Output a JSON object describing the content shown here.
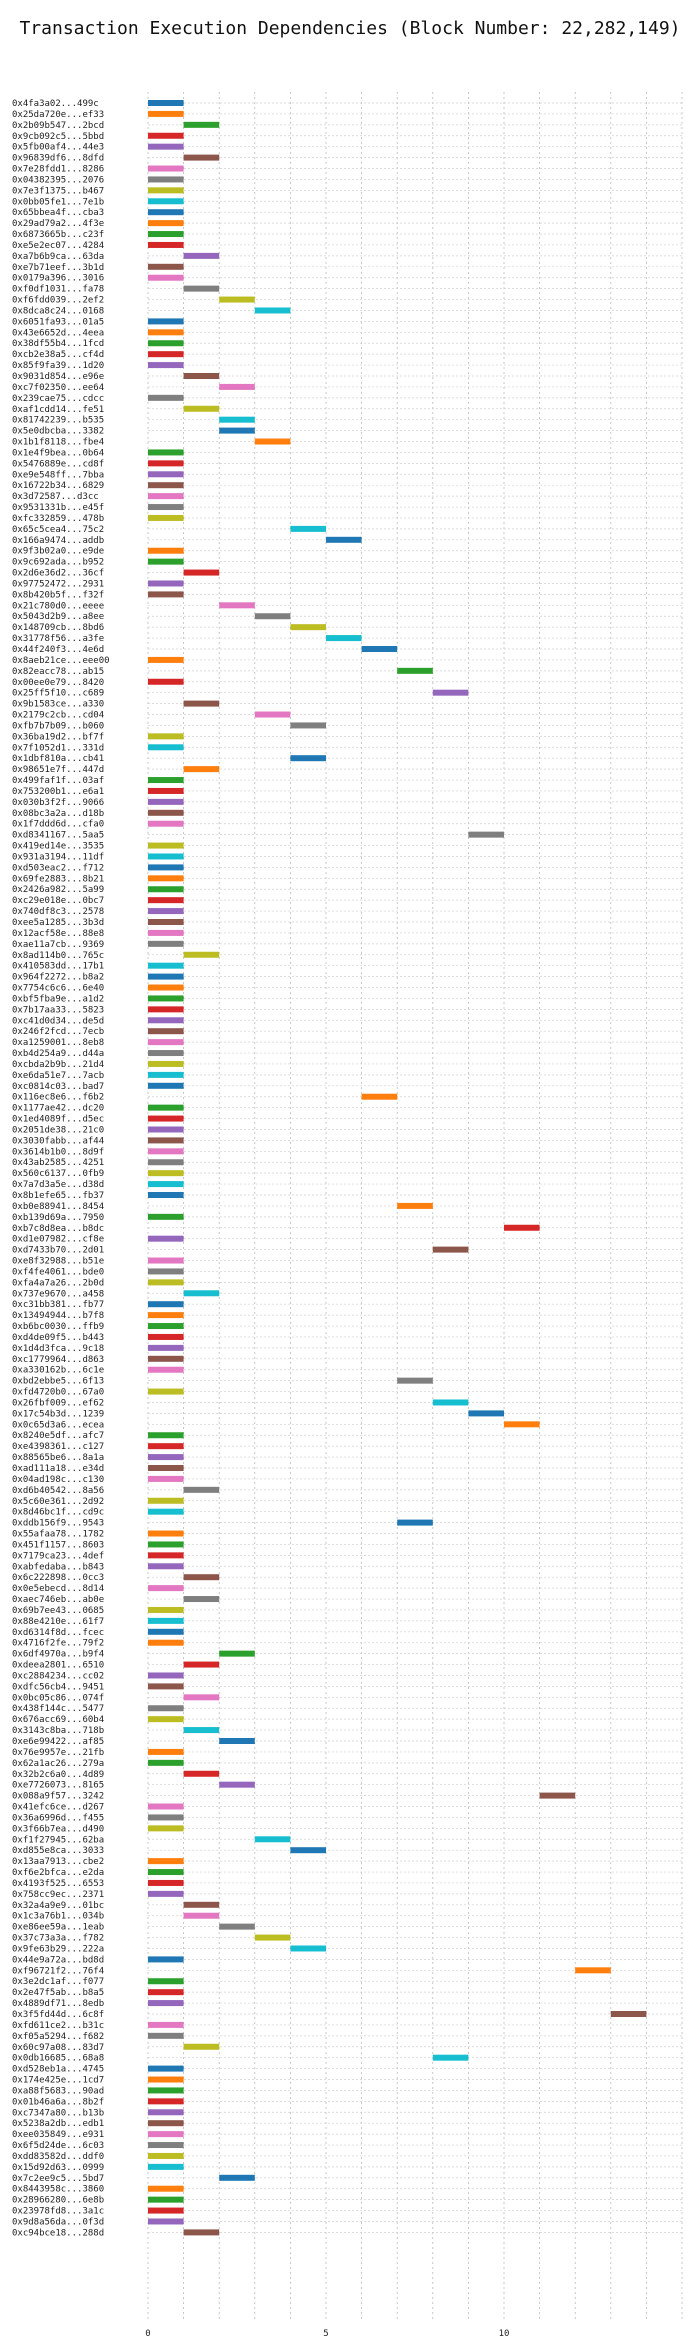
{
  "chart_data": {
    "type": "bar",
    "orientation": "horizontal",
    "title": "Transaction Execution Dependencies (Block Number: 22,282,149)",
    "xlabel": "",
    "ylabel": "",
    "xlim": [
      0,
      15
    ],
    "xticks": [
      0,
      5,
      10
    ],
    "grid": {
      "x": true,
      "y": true,
      "style": "dotted"
    },
    "bar_width": 1,
    "palette": [
      "#1f77b4",
      "#ff7f0e",
      "#2ca02c",
      "#d62728",
      "#9467bd",
      "#8c564b",
      "#e377c2",
      "#7f7f7f",
      "#bcbd22",
      "#17becf"
    ],
    "transactions": [
      "0x4fa3a02...499c",
      "0x25da720e...ef33",
      "0x2b09b547...2bcd",
      "0x9cb092c5...5bbd",
      "0x5fb00af4...44e3",
      "0x96839df6...8dfd",
      "0x7e28fdd1...8286",
      "0x04382395...2076",
      "0x7e3f1375...b467",
      "0x0bb05fe1...7e1b",
      "0x65bbea4f...cba3",
      "0x29ad79a2...4f3e",
      "0x6873665b...c23f",
      "0xe5e2ec07...4284",
      "0xa7b6b9ca...63da",
      "0xe7b71eef...3b1d",
      "0x0179a396...3016",
      "0xf0df1031...fa78",
      "0xf6fdd039...2ef2",
      "0x8dca8c24...0168",
      "0x6051fa93...01a5",
      "0x43e6652d...4eea",
      "0x38df55b4...1fcd",
      "0xcb2e38a5...cf4d",
      "0x85f9fa39...1d20",
      "0x9031d854...e96e",
      "0xc7f02350...ee64",
      "0x239cae75...cdcc",
      "0xaf1cdd14...fe51",
      "0x81742239...b535",
      "0x5e0dbcba...3382",
      "0x1b1f8118...fbe4",
      "0x1e4f9bea...0b64",
      "0x5476889e...cd8f",
      "0xe9e548ff...7bba",
      "0x16722b34...6829",
      "0x3d72587...d3cc",
      "0x9531331b...e45f",
      "0xfc332859...478b",
      "0x65c5cea4...75c2",
      "0x166a9474...addb",
      "0x9f3b02a0...e9de",
      "0x9c692ada...b952",
      "0x2d6e36d2...36cf",
      "0x97752472...2931",
      "0x8b420b5f...f32f",
      "0x21c780d0...eeee",
      "0x5043d2b9...a8ee",
      "0x148709cb...8bd6",
      "0x31778f56...a3fe",
      "0x44f240f3...4e6d",
      "0x8aeb21ce...eee00",
      "0x82eacc78...ab15",
      "0x00ee0e79...8420",
      "0x25ff5f10...c689",
      "0x9b1583ce...a330",
      "0x2179c2cb...cd04",
      "0xfb7b7b09...b060",
      "0x36ba19d2...bf7f",
      "0x7f1052d1...331d",
      "0x1dbf810a...cb41",
      "0x98651e7f...447d",
      "0x499faf1f...03af",
      "0x753200b1...e6a1",
      "0x030b3f2f...9066",
      "0x08bc3a2a...d18b",
      "0x1f7ddd6d...cfa0",
      "0xd8341167...5aa5",
      "0x419ed14e...3535",
      "0x931a3194...11df",
      "0xd503eac2...f712",
      "0x69fe2883...8b21",
      "0x2426a982...5a99",
      "0xc29e018e...0bc7",
      "0x740df8c3...2578",
      "0xee5a1285...3b3d",
      "0x12acf58e...88e8",
      "0xae11a7cb...9369",
      "0x8ad114b0...765c",
      "0x410583dd...17b1",
      "0x964f2272...b8a2",
      "0x7754c6c6...6e40",
      "0xbf5fba9e...a1d2",
      "0x7b17aa33...5823",
      "0xc41d0d34...de5d",
      "0x246f2fcd...7ecb",
      "0xa1259001...8eb8",
      "0xb4d254a9...d44a",
      "0xcbda2b9b...21d4",
      "0xe6da51e7...7acb",
      "0xc0814c03...bad7",
      "0x116ec8e6...f6b2",
      "0x1177ae42...dc20",
      "0x1ed4089f...d5ec",
      "0x2051de38...21c0",
      "0x3030fabb...af44",
      "0x3614b1b0...8d9f",
      "0x43ab2585...4251",
      "0x560c6137...0fb9",
      "0x7a7d3a5e...d38d",
      "0x8b1efe65...fb37",
      "0xb0e88941...8454",
      "0xb139d69a...7950",
      "0xb7c8d8ea...b8dc",
      "0xd1e07982...cf8e",
      "0xd7433b70...2d01",
      "0xe8f32988...b51e",
      "0xf4fe4061...bde0",
      "0xfa4a7a26...2b0d",
      "0x737e9670...a458",
      "0xc31bb381...fb77",
      "0x13494944...b7f8",
      "0xb6bc0030...ffb9",
      "0xd4de09f5...b443",
      "0x1d4d3fca...9c18",
      "0xc1779964...d863",
      "0xa330162b...6c1e",
      "0xbd2ebbe5...6f13",
      "0xfd4720b0...67a0",
      "0x26fbf009...ef62",
      "0x17c54b3d...1239",
      "0x0c65d3a6...ecea",
      "0x8240e5df...afc7",
      "0xe4398361...c127",
      "0x88565be6...8a1a",
      "0xad111a18...e34d",
      "0x04ad198c...c130",
      "0xd6b40542...8a56",
      "0x5c60e361...2d92",
      "0x8d46bc1f...cd9c",
      "0xddb156f9...9543",
      "0x55afaa78...1782",
      "0x451f1157...8603",
      "0x7179ca23...4def",
      "0xabfedaba...b843",
      "0x6c222898...0cc3",
      "0x0e5ebecd...8d14",
      "0xaec746eb...ab0e",
      "0x69b7ee43...0685",
      "0x88e4210e...61f7",
      "0xd6314f8d...fcec",
      "0x4716f2fe...79f2",
      "0x6df4970a...b9f4",
      "0xdeea2801...6510",
      "0xc2884234...cc02",
      "0xdfc56cb4...9451",
      "0x0bc05c86...074f",
      "0x438f144c...5477",
      "0x676acc69...60b4",
      "0x3143c8ba...718b",
      "0xe6e99422...af85",
      "0x76e9957e...21fb",
      "0x62a1ac26...279a",
      "0x32b2c6a0...4d89",
      "0xe7726073...8165",
      "0x088a9f57...3242",
      "0x41efc6ce...d267",
      "0x36a6996d...f455",
      "0x3f66b7ea...d490",
      "0xf1f27945...62ba",
      "0xd855e8ca...3033",
      "0x13aa7913...cbe2",
      "0xf6e2bfca...e2da",
      "0x4193f525...6553",
      "0x758cc9ec...2371",
      "0x32a4a9e9...01bc",
      "0x1c3a76b1...034b",
      "0xe86ee59a...1eab",
      "0x37c73a3a...f782",
      "0x9fe63b29...222a",
      "0x44e9a72a...bd8d",
      "0xf96721f2...76f4",
      "0x3e2dc1af...f077",
      "0x2e47f5ab...b8a5",
      "0x4889df71...8edb",
      "0x3f5fd44d...6c8f",
      "0xfd611ce2...b31c",
      "0xf05a5294...f682",
      "0x60c97a08...83d7",
      "0x0db16685...68a8",
      "0xd528eb1a...4745",
      "0x174e425e...1cd7",
      "0xa88f5683...90ad",
      "0x01b46a6a...8b2f",
      "0xc7347a80...b13b",
      "0x5238a2db...edb1",
      "0xee035849...e931",
      "0x6f5d24de...6c03",
      "0xdd83582d...ddf0",
      "0x15d92d63...0999",
      "0x7c2ee9c5...5bd7",
      "0x8443958c...3860",
      "0x28966280...6e8b",
      "0x23978fd8...3a1c",
      "0x9d8a56da...0f3d",
      "0xc94bce18...288d"
    ],
    "starts": [
      0,
      0,
      1,
      0,
      0,
      1,
      0,
      0,
      0,
      0,
      0,
      0,
      0,
      0,
      1,
      0,
      0,
      1,
      2,
      3,
      0,
      0,
      0,
      0,
      0,
      1,
      2,
      0,
      1,
      2,
      2,
      3,
      0,
      0,
      0,
      0,
      0,
      0,
      0,
      4,
      5,
      0,
      0,
      1,
      0,
      0,
      2,
      3,
      4,
      5,
      6,
      0,
      7,
      0,
      8,
      1,
      3,
      4,
      0,
      0,
      4,
      1,
      0,
      0,
      0,
      0,
      0,
      9,
      0,
      0,
      0,
      0,
      0,
      0,
      0,
      0,
      0,
      0,
      1,
      0,
      0,
      0,
      0,
      0,
      0,
      0,
      0,
      0,
      0,
      0,
      0,
      6,
      0,
      0,
      0,
      0,
      0,
      0,
      0,
      0,
      0,
      7,
      0,
      10,
      0,
      8,
      0,
      0,
      0,
      1,
      0,
      0,
      0,
      0,
      0,
      0,
      0,
      7,
      0,
      8,
      9,
      10,
      0,
      0,
      0,
      0,
      0,
      1,
      0,
      0,
      7,
      0,
      0,
      0,
      0,
      1,
      0,
      1,
      0,
      0,
      0,
      0,
      2,
      1,
      0,
      0,
      1,
      0,
      0,
      1,
      2,
      0,
      0,
      1,
      2,
      11,
      0,
      0,
      0,
      3,
      4,
      0,
      0,
      0,
      0,
      1,
      1,
      2,
      3,
      4,
      0,
      12,
      0,
      0,
      0,
      13,
      0,
      0,
      1,
      8,
      0,
      0,
      0,
      0,
      0,
      0,
      0,
      0,
      0,
      0,
      2,
      0,
      0,
      0,
      0,
      1,
      0
    ],
    "colors": [
      0,
      1,
      2,
      3,
      4,
      5,
      6,
      7,
      8,
      9,
      0,
      1,
      2,
      3,
      4,
      5,
      6,
      7,
      8,
      9,
      0,
      1,
      2,
      3,
      4,
      5,
      6,
      7,
      8,
      9,
      0,
      1,
      2,
      3,
      4,
      5,
      6,
      7,
      8,
      9,
      0,
      1,
      2,
      3,
      4,
      5,
      6,
      7,
      8,
      9,
      0,
      1,
      2,
      3,
      4,
      5,
      6,
      7,
      8,
      9,
      0,
      1,
      2,
      3,
      4,
      5,
      6,
      7,
      8,
      9,
      0,
      1,
      2,
      3,
      4,
      5,
      6,
      7,
      8,
      9,
      0,
      1,
      2,
      3,
      4,
      5,
      6,
      7,
      8,
      9,
      0,
      1,
      2,
      3,
      4,
      5,
      6,
      7,
      8,
      9,
      0,
      1,
      2,
      3,
      4,
      5,
      6,
      7,
      8,
      9,
      0,
      1,
      2,
      3,
      4,
      5,
      6,
      7,
      8,
      9,
      0,
      1,
      2,
      3,
      4,
      5,
      6,
      7,
      8,
      9,
      0,
      1,
      2,
      3,
      4,
      5,
      6,
      7,
      8,
      9,
      0,
      1,
      2,
      3,
      4,
      5,
      6,
      7,
      8,
      9,
      0,
      1,
      2,
      3,
      4,
      5,
      6,
      7,
      8,
      9,
      0,
      1,
      2,
      3,
      4,
      5,
      6,
      7,
      8,
      9,
      0,
      1,
      2,
      3,
      4,
      5,
      6,
      7,
      8,
      9,
      0,
      1,
      2,
      3,
      4,
      5,
      6,
      7,
      8,
      9,
      0,
      1,
      2,
      3,
      4,
      5,
      6
    ]
  }
}
